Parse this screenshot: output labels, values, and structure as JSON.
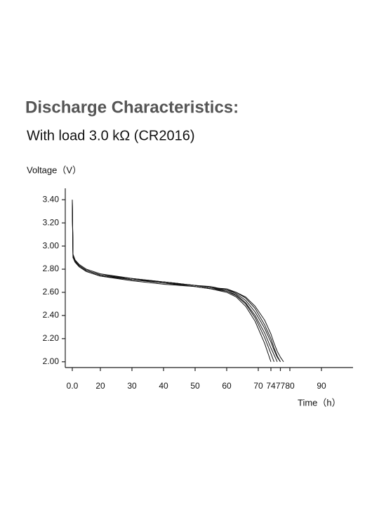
{
  "chart_data": {
    "type": "line",
    "title": "Discharge Characteristics:",
    "subtitle": "With load 3.0 kΩ (CR2016)",
    "y_label": "Voltage（V）",
    "x_label": "Time（h）",
    "x": [
      0,
      0.5,
      2,
      5,
      10,
      20,
      30,
      40,
      50,
      55,
      60,
      63,
      66,
      69,
      72,
      74,
      75,
      76,
      77,
      78
    ],
    "series": [
      {
        "color": "#111111",
        "values": [
          3.4,
          2.92,
          2.87,
          2.83,
          2.79,
          2.75,
          2.71,
          2.68,
          2.65,
          2.63,
          2.6,
          2.56,
          2.48,
          2.35,
          2.16,
          2.0,
          null,
          null,
          null,
          null
        ]
      },
      {
        "color": "#111111",
        "values": [
          3.38,
          2.91,
          2.86,
          2.82,
          2.78,
          2.74,
          2.7,
          2.67,
          2.65,
          2.63,
          2.61,
          2.57,
          2.5,
          2.38,
          2.21,
          2.07,
          2.0,
          null,
          null,
          null
        ]
      },
      {
        "color": "#111111",
        "values": [
          3.39,
          2.93,
          2.88,
          2.84,
          2.8,
          2.76,
          2.72,
          2.69,
          2.66,
          2.64,
          2.61,
          2.58,
          2.51,
          2.4,
          2.25,
          2.12,
          2.06,
          2.0,
          null,
          null
        ]
      },
      {
        "color": "#111111",
        "values": [
          3.36,
          2.9,
          2.86,
          2.82,
          2.78,
          2.74,
          2.71,
          2.68,
          2.66,
          2.64,
          2.62,
          2.59,
          2.53,
          2.43,
          2.29,
          2.17,
          2.1,
          2.04,
          2.0,
          null
        ]
      },
      {
        "color": "#111111",
        "values": [
          3.4,
          2.92,
          2.87,
          2.83,
          2.79,
          2.75,
          2.72,
          2.69,
          2.66,
          2.65,
          2.62,
          2.6,
          2.55,
          2.46,
          2.32,
          2.2,
          2.12,
          2.05,
          2.0,
          null
        ]
      },
      {
        "color": "#111111",
        "values": [
          3.37,
          2.91,
          2.87,
          2.83,
          2.79,
          2.75,
          2.71,
          2.69,
          2.66,
          2.64,
          2.63,
          2.6,
          2.56,
          2.48,
          2.36,
          2.24,
          2.16,
          2.09,
          2.04,
          2.0
        ]
      }
    ],
    "xlim": [
      0,
      100
    ],
    "xticks": [
      {
        "value": 0,
        "label": "0.0"
      },
      20,
      30,
      40,
      50,
      60,
      70,
      74,
      77,
      80,
      90
    ],
    "ylim": [
      1.95,
      3.45
    ],
    "yticks": [
      {
        "value": 2.0,
        "label": "2.00"
      },
      {
        "value": 2.2,
        "label": "2.20"
      },
      {
        "value": 2.4,
        "label": "2.40"
      },
      {
        "value": 2.6,
        "label": "2.60"
      },
      {
        "value": 2.8,
        "label": "2.80"
      },
      {
        "value": 3.0,
        "label": "3.00"
      },
      {
        "value": 3.2,
        "label": "3.20"
      },
      {
        "value": 3.4,
        "label": "3.40"
      }
    ],
    "grid": false
  }
}
